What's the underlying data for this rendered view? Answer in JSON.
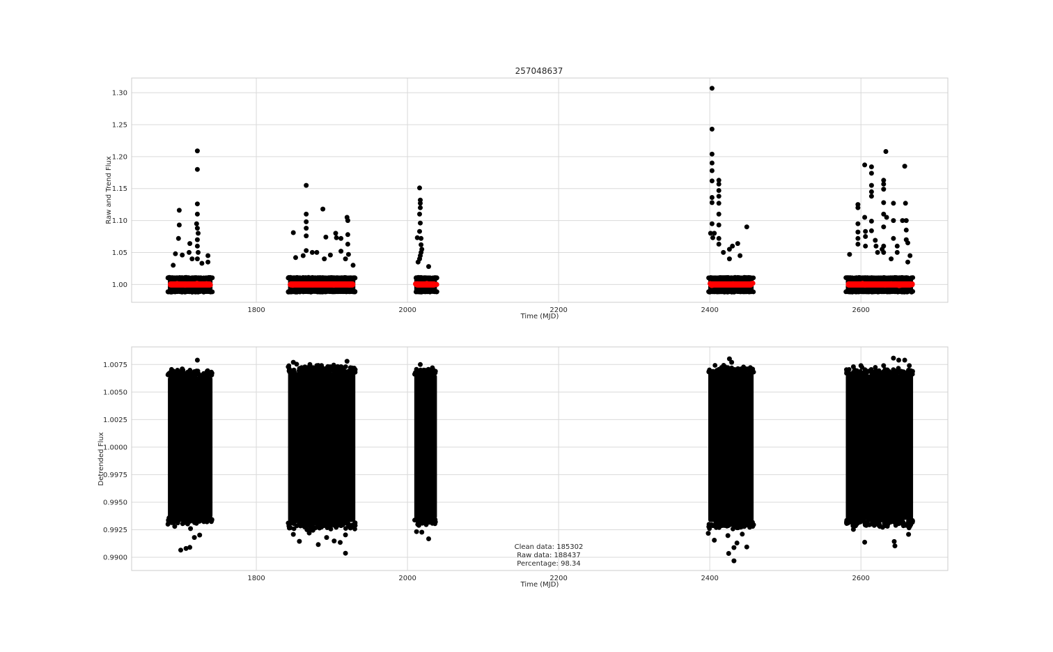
{
  "figure": {
    "title": "257048637"
  },
  "chart_data": [
    {
      "type": "scatter",
      "title": "257048637",
      "xlabel": "Time (MJD)",
      "ylabel": "Raw and Trend Flux",
      "xlim": [
        1635,
        2715
      ],
      "ylim": [
        0.972,
        1.323
      ],
      "xticks": [
        1800,
        2000,
        2200,
        2400,
        2600
      ],
      "xtick_labels": [
        "1800",
        "2000",
        "2200",
        "2400",
        "2600"
      ],
      "yticks": [
        1.0,
        1.05,
        1.1,
        1.15,
        1.2,
        1.25,
        1.3
      ],
      "ytick_labels": [
        "1.00",
        "1.05",
        "1.10",
        "1.15",
        "1.20",
        "1.25",
        "1.30"
      ],
      "grid": true,
      "series": [
        {
          "color": "#000000",
          "marker": "circle",
          "segments": [
            {
              "x_range": [
                1683,
                1742
              ],
              "band": [
                0.989,
                1.01
              ]
            },
            {
              "x_range": [
                1842,
                1931
              ],
              "band": [
                0.989,
                1.01
              ]
            },
            {
              "x_range": [
                2009,
                2039
              ],
              "band": [
                0.989,
                1.01
              ]
            },
            {
              "x_range": [
                2398,
                2458
              ],
              "band": [
                0.989,
                1.01
              ]
            },
            {
              "x_range": [
                2580,
                2669
              ],
              "band": [
                0.989,
                1.01
              ]
            }
          ],
          "outliers": [
            [
              1698,
              1.116
            ],
            [
              1698,
              1.093
            ],
            [
              1697,
              1.072
            ],
            [
              1693,
              1.048
            ],
            [
              1702,
              1.046
            ],
            [
              1712,
              1.064
            ],
            [
              1711,
              1.05
            ],
            [
              1715,
              1.04
            ],
            [
              1722,
              1.209
            ],
            [
              1722,
              1.18
            ],
            [
              1722,
              1.126
            ],
            [
              1722,
              1.11
            ],
            [
              1721,
              1.095
            ],
            [
              1722,
              1.088
            ],
            [
              1723,
              1.08
            ],
            [
              1722,
              1.07
            ],
            [
              1722,
              1.06
            ],
            [
              1723,
              1.05
            ],
            [
              1722,
              1.04
            ],
            [
              1728,
              1.033
            ],
            [
              1736,
              1.045
            ],
            [
              1736,
              1.035
            ],
            [
              1690,
              1.03
            ],
            [
              1849,
              1.081
            ],
            [
              1866,
              1.155
            ],
            [
              1866,
              1.11
            ],
            [
              1866,
              1.098
            ],
            [
              1866,
              1.088
            ],
            [
              1866,
              1.076
            ],
            [
              1866,
              1.053
            ],
            [
              1862,
              1.045
            ],
            [
              1852,
              1.042
            ],
            [
              1874,
              1.05
            ],
            [
              1880,
              1.05
            ],
            [
              1888,
              1.118
            ],
            [
              1892,
              1.074
            ],
            [
              1890,
              1.04
            ],
            [
              1898,
              1.046
            ],
            [
              1905,
              1.08
            ],
            [
              1906,
              1.073
            ],
            [
              1912,
              1.072
            ],
            [
              1912,
              1.052
            ],
            [
              1920,
              1.105
            ],
            [
              1921,
              1.1
            ],
            [
              1921,
              1.078
            ],
            [
              1921,
              1.063
            ],
            [
              1922,
              1.047
            ],
            [
              1918,
              1.04
            ],
            [
              1928,
              1.03
            ],
            [
              2016,
              1.151
            ],
            [
              2017,
              1.132
            ],
            [
              2017,
              1.127
            ],
            [
              2017,
              1.12
            ],
            [
              2016,
              1.11
            ],
            [
              2017,
              1.096
            ],
            [
              2016,
              1.083
            ],
            [
              2013,
              1.073
            ],
            [
              2018,
              1.072
            ],
            [
              2018,
              1.062
            ],
            [
              2019,
              1.055
            ],
            [
              2018,
              1.05
            ],
            [
              2017,
              1.045
            ],
            [
              2016,
              1.04
            ],
            [
              2014,
              1.035
            ],
            [
              2028,
              1.028
            ],
            [
              2403,
              1.307
            ],
            [
              2403,
              1.243
            ],
            [
              2403,
              1.204
            ],
            [
              2403,
              1.19
            ],
            [
              2403,
              1.178
            ],
            [
              2403,
              1.162
            ],
            [
              2403,
              1.136
            ],
            [
              2403,
              1.128
            ],
            [
              2403,
              1.095
            ],
            [
              2406,
              1.08
            ],
            [
              2401,
              1.08
            ],
            [
              2404,
              1.073
            ],
            [
              2412,
              1.163
            ],
            [
              2412,
              1.157
            ],
            [
              2412,
              1.147
            ],
            [
              2412,
              1.138
            ],
            [
              2412,
              1.127
            ],
            [
              2412,
              1.11
            ],
            [
              2412,
              1.093
            ],
            [
              2412,
              1.072
            ],
            [
              2412,
              1.063
            ],
            [
              2418,
              1.05
            ],
            [
              2426,
              1.055
            ],
            [
              2430,
              1.06
            ],
            [
              2437,
              1.064
            ],
            [
              2449,
              1.09
            ],
            [
              2426,
              1.04
            ],
            [
              2440,
              1.045
            ],
            [
              2585,
              1.047
            ],
            [
              2596,
              1.125
            ],
            [
              2596,
              1.12
            ],
            [
              2596,
              1.095
            ],
            [
              2596,
              1.082
            ],
            [
              2596,
              1.072
            ],
            [
              2596,
              1.063
            ],
            [
              2605,
              1.187
            ],
            [
              2605,
              1.105
            ],
            [
              2606,
              1.083
            ],
            [
              2606,
              1.075
            ],
            [
              2606,
              1.06
            ],
            [
              2614,
              1.184
            ],
            [
              2614,
              1.174
            ],
            [
              2614,
              1.155
            ],
            [
              2614,
              1.145
            ],
            [
              2614,
              1.138
            ],
            [
              2614,
              1.099
            ],
            [
              2614,
              1.084
            ],
            [
              2619,
              1.069
            ],
            [
              2620,
              1.06
            ],
            [
              2622,
              1.05
            ],
            [
              2630,
              1.163
            ],
            [
              2630,
              1.157
            ],
            [
              2630,
              1.149
            ],
            [
              2630,
              1.128
            ],
            [
              2630,
              1.11
            ],
            [
              2630,
              1.09
            ],
            [
              2630,
              1.06
            ],
            [
              2633,
              1.208
            ],
            [
              2634,
              1.105
            ],
            [
              2628,
              1.055
            ],
            [
              2630,
              1.05
            ],
            [
              2643,
              1.127
            ],
            [
              2643,
              1.1
            ],
            [
              2643,
              1.072
            ],
            [
              2648,
              1.06
            ],
            [
              2648,
              1.05
            ],
            [
              2655,
              1.1
            ],
            [
              2658,
              1.185
            ],
            [
              2659,
              1.127
            ],
            [
              2660,
              1.1
            ],
            [
              2660,
              1.085
            ],
            [
              2660,
              1.07
            ],
            [
              2662,
              1.065
            ],
            [
              2665,
              1.045
            ],
            [
              2662,
              1.035
            ],
            [
              2640,
              1.04
            ]
          ]
        },
        {
          "color": "#ff0000",
          "marker": "circle",
          "trend": [
            {
              "x_range": [
                1683,
                1742
              ],
              "y": 1.0
            },
            {
              "x_range": [
                1842,
                1931
              ],
              "y": 1.0
            },
            {
              "x_range": [
                2009,
                2039
              ],
              "y": 1.0
            },
            {
              "x_range": [
                2398,
                2458
              ],
              "y": 1.0
            },
            {
              "x_range": [
                2580,
                2669
              ],
              "y": 1.0
            }
          ]
        }
      ]
    },
    {
      "type": "scatter",
      "title": "",
      "xlabel": "Time (MJD)",
      "ylabel": "Detrended Flux",
      "xlim": [
        1635,
        2715
      ],
      "ylim": [
        0.9888,
        1.0091
      ],
      "xticks": [
        1800,
        2000,
        2200,
        2400,
        2600
      ],
      "xtick_labels": [
        "1800",
        "2000",
        "2200",
        "2400",
        "2600"
      ],
      "yticks": [
        0.99,
        0.9925,
        0.995,
        0.9975,
        1.0,
        1.0025,
        1.005,
        1.0075
      ],
      "ytick_labels": [
        "0.9900",
        "0.9925",
        "0.9950",
        "0.9975",
        "1.0000",
        "1.0025",
        "1.0050",
        "1.0075"
      ],
      "grid": true,
      "series": [
        {
          "color": "#000000",
          "marker": "circle",
          "segments": [
            {
              "x_range": [
                1683,
                1742
              ],
              "band": [
                0.9936,
                1.0064
              ]
            },
            {
              "x_range": [
                1842,
                1931
              ],
              "band": [
                0.9932,
                1.0068
              ]
            },
            {
              "x_range": [
                2009,
                2039
              ],
              "band": [
                0.9935,
                1.0066
              ]
            },
            {
              "x_range": [
                2398,
                2458
              ],
              "band": [
                0.9932,
                1.0068
              ]
            },
            {
              "x_range": [
                2580,
                2669
              ],
              "band": [
                0.9934,
                1.0066
              ]
            }
          ],
          "outliers": [
            [
              1700,
              0.99065
            ],
            [
              1707,
              0.9908
            ],
            [
              1712,
              0.9909
            ],
            [
              1718,
              0.9918
            ],
            [
              1713,
              0.9926
            ],
            [
              1725,
              0.99202
            ],
            [
              1692,
              0.9928
            ],
            [
              1722,
              1.0079
            ],
            [
              1702,
              1.0071
            ],
            [
              1735,
              1.0069
            ],
            [
              1849,
              1.0077
            ],
            [
              1920,
              1.0078
            ],
            [
              1880,
              1.0074
            ],
            [
              1849,
              0.99208
            ],
            [
              1857,
              0.99145
            ],
            [
              1870,
              0.9922
            ],
            [
              1882,
              0.99115
            ],
            [
              1893,
              0.9918
            ],
            [
              1903,
              0.99148
            ],
            [
              1911,
              0.99135
            ],
            [
              1918,
              0.99203
            ],
            [
              1918,
              0.99037
            ],
            [
              1925,
              0.9928
            ],
            [
              2017,
              1.0075
            ],
            [
              2033,
              1.0072
            ],
            [
              2012,
              0.99233
            ],
            [
              2019,
              0.99228
            ],
            [
              2028,
              0.99168
            ],
            [
              2015,
              0.9929
            ],
            [
              2398,
              0.99218
            ],
            [
              2406,
              0.99155
            ],
            [
              2420,
              1.0073
            ],
            [
              2424,
              0.99197
            ],
            [
              2425,
              0.99035
            ],
            [
              2432,
              0.99088
            ],
            [
              2432,
              0.98968
            ],
            [
              2436,
              0.9913
            ],
            [
              2443,
              0.9921
            ],
            [
              2449,
              0.99094
            ],
            [
              2426,
              1.00802
            ],
            [
              2429,
              1.0077
            ],
            [
              2440,
              1.0066
            ],
            [
              2590,
              1.0073
            ],
            [
              2600,
              1.0074
            ],
            [
              2605,
              0.99137
            ],
            [
              2630,
              1.0074
            ],
            [
              2643,
              1.00808
            ],
            [
              2650,
              1.0079
            ],
            [
              2658,
              1.0079
            ],
            [
              2664,
              1.0074
            ],
            [
              2644,
              0.99143
            ],
            [
              2645,
              0.99103
            ],
            [
              2663,
              0.99208
            ],
            [
              2590,
              0.99253
            ],
            [
              2625,
              0.9928
            ]
          ]
        }
      ],
      "annotation": {
        "clean": "Clean data: 185302",
        "raw": "Raw data: 188437",
        "pct": "Percentage: 98.34"
      }
    }
  ]
}
